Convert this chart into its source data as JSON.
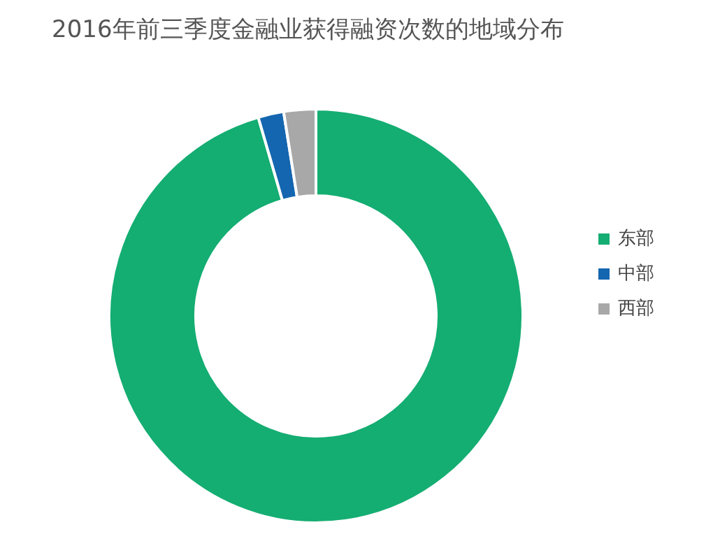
{
  "chart_data": {
    "type": "donut",
    "title": "2016年前三季度金融业获得融资次数的地域分布",
    "categories": [
      "东部",
      "中部",
      "西部"
    ],
    "values": [
      95.5,
      2,
      2.5
    ],
    "colors": [
      "#14ad72",
      "#1466b0",
      "#a8a8a8"
    ],
    "legend": "right"
  }
}
